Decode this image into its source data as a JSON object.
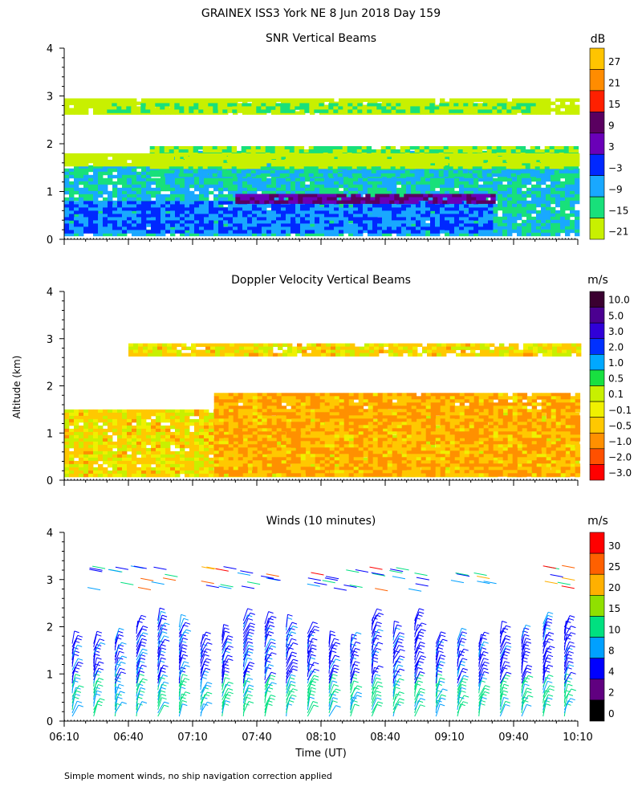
{
  "page_title": "GRAINEX ISS3 York NE   8 Jun 2018 Day 159",
  "shared_ylabel": "Altitude (km)",
  "footnote": "Simple moment winds, no ship navigation correction applied",
  "chart_data": [
    {
      "id": "snr",
      "type": "heatmap",
      "title": "SNR Vertical Beams",
      "units": "dB",
      "ylim": [
        0,
        4
      ],
      "yticks": [
        "0",
        "1",
        "2",
        "3",
        "4"
      ],
      "x_minutes": [
        0,
        240
      ],
      "colorbar_labels": [
        "27",
        "21",
        "15",
        "9",
        "3",
        "−3",
        "−9",
        "−15",
        "−21"
      ],
      "colorbar_colors": [
        "#ffc400",
        "#ff8c00",
        "#ff2000",
        "#5a0060",
        "#6a00b8",
        "#0028ff",
        "#19a8ff",
        "#18e07a",
        "#c8f000"
      ],
      "layers": [
        {
          "bot": 0.12,
          "top": 1.55,
          "level": -9,
          "t0": 0,
          "t1": 240
        },
        {
          "bot": 1.3,
          "top": 1.85,
          "level": -9,
          "t0": 40,
          "t1": 240
        },
        {
          "bot": 1.5,
          "top": 1.95,
          "level": -15,
          "t0": 40,
          "t1": 240
        },
        {
          "bot": 0.12,
          "top": 0.8,
          "level": -3,
          "t0": 0,
          "t1": 200
        },
        {
          "bot": 0.75,
          "top": 0.95,
          "level": 9,
          "t0": 80,
          "t1": 200
        },
        {
          "bot": 1.55,
          "top": 1.8,
          "level": -21,
          "t0": 0,
          "t1": 240
        },
        {
          "bot": 2.6,
          "top": 2.95,
          "level": -21,
          "t0": 0,
          "t1": 240
        },
        {
          "bot": 2.65,
          "top": 2.85,
          "level": -15,
          "t0": 20,
          "t1": 220
        }
      ]
    },
    {
      "id": "doppler",
      "type": "heatmap",
      "title": "Doppler Velocity Vertical Beams",
      "units": "m/s",
      "ylim": [
        0,
        4
      ],
      "yticks": [
        "0",
        "1",
        "2",
        "3",
        "4"
      ],
      "x_minutes": [
        0,
        240
      ],
      "colorbar_labels": [
        "10.0",
        "5.0",
        "3.0",
        "2.0",
        "1.0",
        "0.5",
        "0.1",
        "−0.1",
        "−0.5",
        "−1.0",
        "−2.0",
        "−3.0"
      ],
      "colorbar_colors": [
        "#3a0030",
        "#4b0090",
        "#3000d8",
        "#0030ff",
        "#00a8ff",
        "#18e040",
        "#c8f000",
        "#f0f000",
        "#ffc800",
        "#ff9000",
        "#ff5000",
        "#ff0000"
      ],
      "layers": [
        {
          "bot": 0.1,
          "top": 1.5,
          "level": -0.1,
          "t0": 0,
          "t1": 240
        },
        {
          "bot": 0.1,
          "top": 1.85,
          "level": -0.5,
          "t0": 70,
          "t1": 240
        },
        {
          "bot": 2.65,
          "top": 2.9,
          "level": -0.1,
          "t0": 30,
          "t1": 240
        }
      ]
    },
    {
      "id": "winds",
      "type": "wind_barbs",
      "title": "Winds (10 minutes)",
      "units": "m/s",
      "ylim": [
        0,
        4
      ],
      "yticks": [
        "0",
        "1",
        "2",
        "3",
        "4"
      ],
      "x_minutes": [
        0,
        240
      ],
      "colorbar_labels": [
        "30",
        "25",
        "20",
        "15",
        "10",
        "8",
        "4",
        "2",
        "0"
      ],
      "colorbar_colors": [
        "#ff0000",
        "#ff6000",
        "#ffb000",
        "#90e000",
        "#00e080",
        "#00a0ff",
        "#0000ff",
        "#600080",
        "#000000"
      ],
      "xticks": [
        "06:10",
        "06:40",
        "07:10",
        "07:40",
        "08:10",
        "08:40",
        "09:10",
        "09:40",
        "10:10"
      ],
      "xlabel": "Time (UT)",
      "profiles_every_minutes": 10
    }
  ]
}
